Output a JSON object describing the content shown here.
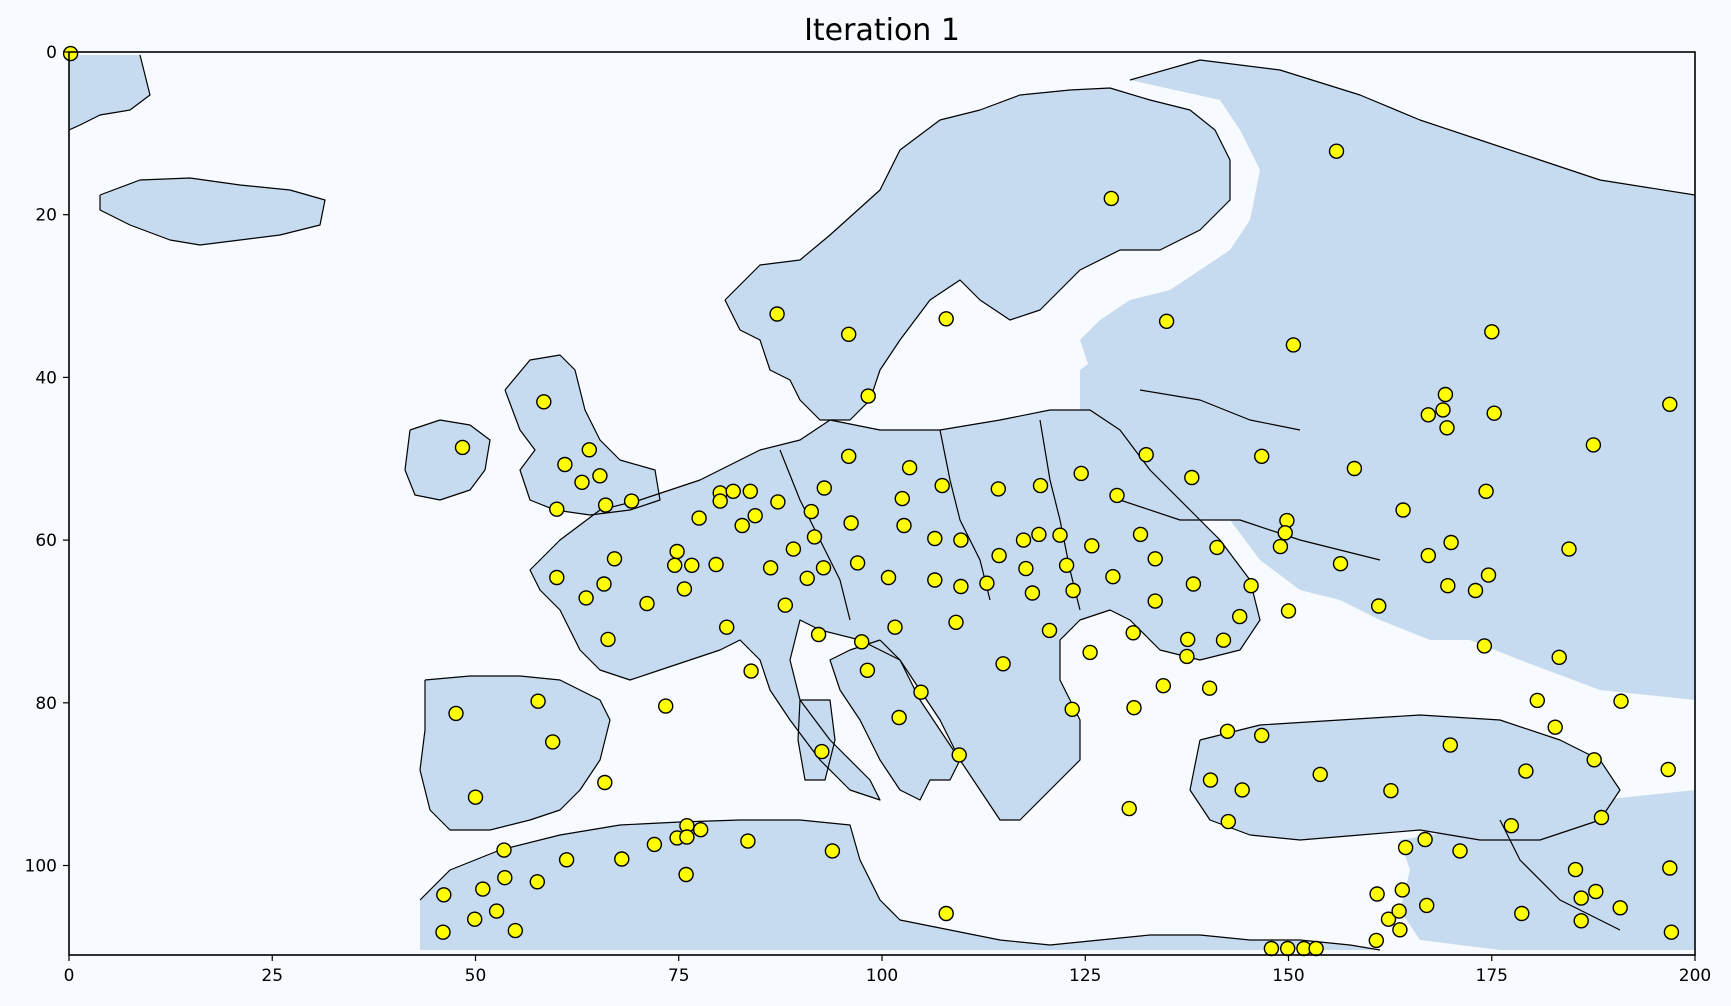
{
  "chart_data": {
    "type": "scatter",
    "title": "Iteration 1",
    "xlabel": "",
    "ylabel": "",
    "xlim": [
      0,
      200
    ],
    "ylim": [
      111,
      0
    ],
    "x_ticks": [
      0,
      25,
      50,
      75,
      100,
      125,
      150,
      175,
      200
    ],
    "y_ticks": [
      0,
      20,
      40,
      60,
      80,
      100
    ],
    "grid": false,
    "background_color": "#f7fbff",
    "land_color": "#c6dbef",
    "marker_color": "#ffff00",
    "points": [
      {
        "x": 0.2,
        "y": 0.2
      },
      {
        "x": 155.9,
        "y": 12.2
      },
      {
        "x": 128.2,
        "y": 18.0
      },
      {
        "x": 87.1,
        "y": 32.2
      },
      {
        "x": 95.9,
        "y": 34.7
      },
      {
        "x": 107.9,
        "y": 32.8
      },
      {
        "x": 135.0,
        "y": 33.1
      },
      {
        "x": 150.6,
        "y": 36.0
      },
      {
        "x": 175.0,
        "y": 34.4
      },
      {
        "x": 58.4,
        "y": 43.0
      },
      {
        "x": 98.3,
        "y": 42.3
      },
      {
        "x": 169.3,
        "y": 42.1
      },
      {
        "x": 167.2,
        "y": 44.6
      },
      {
        "x": 169.0,
        "y": 44.0
      },
      {
        "x": 169.5,
        "y": 46.2
      },
      {
        "x": 175.3,
        "y": 44.4
      },
      {
        "x": 196.9,
        "y": 43.3
      },
      {
        "x": 48.4,
        "y": 48.6
      },
      {
        "x": 64.0,
        "y": 48.9
      },
      {
        "x": 61.0,
        "y": 50.7
      },
      {
        "x": 65.3,
        "y": 52.1
      },
      {
        "x": 63.1,
        "y": 52.9
      },
      {
        "x": 95.9,
        "y": 49.7
      },
      {
        "x": 103.4,
        "y": 51.1
      },
      {
        "x": 132.5,
        "y": 49.5
      },
      {
        "x": 146.7,
        "y": 49.7
      },
      {
        "x": 187.5,
        "y": 48.3
      },
      {
        "x": 69.2,
        "y": 55.2
      },
      {
        "x": 66.0,
        "y": 55.7
      },
      {
        "x": 60.0,
        "y": 56.2
      },
      {
        "x": 80.1,
        "y": 54.2
      },
      {
        "x": 81.7,
        "y": 54.0
      },
      {
        "x": 83.8,
        "y": 54.0
      },
      {
        "x": 80.1,
        "y": 55.2
      },
      {
        "x": 87.2,
        "y": 55.3
      },
      {
        "x": 92.9,
        "y": 53.6
      },
      {
        "x": 107.4,
        "y": 53.3
      },
      {
        "x": 114.3,
        "y": 53.7
      },
      {
        "x": 119.5,
        "y": 53.3
      },
      {
        "x": 124.5,
        "y": 51.8
      },
      {
        "x": 128.9,
        "y": 54.5
      },
      {
        "x": 138.1,
        "y": 52.3
      },
      {
        "x": 158.1,
        "y": 51.2
      },
      {
        "x": 174.3,
        "y": 54.0
      },
      {
        "x": 77.5,
        "y": 57.3
      },
      {
        "x": 82.8,
        "y": 58.2
      },
      {
        "x": 84.4,
        "y": 57.0
      },
      {
        "x": 91.3,
        "y": 56.5
      },
      {
        "x": 96.2,
        "y": 57.9
      },
      {
        "x": 102.5,
        "y": 54.9
      },
      {
        "x": 102.7,
        "y": 58.2
      },
      {
        "x": 149.8,
        "y": 57.6
      },
      {
        "x": 164.1,
        "y": 56.3
      },
      {
        "x": 74.8,
        "y": 61.4
      },
      {
        "x": 89.1,
        "y": 61.1
      },
      {
        "x": 91.7,
        "y": 59.6
      },
      {
        "x": 106.5,
        "y": 59.8
      },
      {
        "x": 109.7,
        "y": 60.0
      },
      {
        "x": 117.4,
        "y": 60.0
      },
      {
        "x": 119.3,
        "y": 59.3
      },
      {
        "x": 121.9,
        "y": 59.4
      },
      {
        "x": 125.8,
        "y": 60.7
      },
      {
        "x": 131.8,
        "y": 59.3
      },
      {
        "x": 141.2,
        "y": 60.9
      },
      {
        "x": 149.6,
        "y": 59.1
      },
      {
        "x": 149.0,
        "y": 60.8
      },
      {
        "x": 170.0,
        "y": 60.3
      },
      {
        "x": 184.5,
        "y": 61.1
      },
      {
        "x": 67.1,
        "y": 62.3
      },
      {
        "x": 74.5,
        "y": 63.1
      },
      {
        "x": 76.6,
        "y": 63.1
      },
      {
        "x": 79.6,
        "y": 63.0
      },
      {
        "x": 86.3,
        "y": 63.4
      },
      {
        "x": 92.8,
        "y": 63.4
      },
      {
        "x": 97.0,
        "y": 62.8
      },
      {
        "x": 114.4,
        "y": 61.9
      },
      {
        "x": 117.7,
        "y": 63.5
      },
      {
        "x": 122.7,
        "y": 63.1
      },
      {
        "x": 133.6,
        "y": 62.3
      },
      {
        "x": 156.4,
        "y": 62.9
      },
      {
        "x": 167.2,
        "y": 61.9
      },
      {
        "x": 60.0,
        "y": 64.6
      },
      {
        "x": 65.8,
        "y": 65.4
      },
      {
        "x": 90.8,
        "y": 64.7
      },
      {
        "x": 100.8,
        "y": 64.6
      },
      {
        "x": 106.5,
        "y": 64.9
      },
      {
        "x": 109.7,
        "y": 65.7
      },
      {
        "x": 112.9,
        "y": 65.3
      },
      {
        "x": 128.4,
        "y": 64.5
      },
      {
        "x": 138.3,
        "y": 65.4
      },
      {
        "x": 145.4,
        "y": 65.6
      },
      {
        "x": 169.6,
        "y": 65.6
      },
      {
        "x": 174.6,
        "y": 64.3
      },
      {
        "x": 63.6,
        "y": 67.1
      },
      {
        "x": 75.7,
        "y": 66.0
      },
      {
        "x": 88.1,
        "y": 68.0
      },
      {
        "x": 118.5,
        "y": 66.5
      },
      {
        "x": 123.5,
        "y": 66.2
      },
      {
        "x": 133.6,
        "y": 67.5
      },
      {
        "x": 150.0,
        "y": 68.7
      },
      {
        "x": 161.1,
        "y": 68.1
      },
      {
        "x": 173.0,
        "y": 66.2
      },
      {
        "x": 71.1,
        "y": 67.8
      },
      {
        "x": 109.1,
        "y": 70.1
      },
      {
        "x": 144.0,
        "y": 69.4
      },
      {
        "x": 66.3,
        "y": 72.2
      },
      {
        "x": 80.9,
        "y": 70.7
      },
      {
        "x": 92.2,
        "y": 71.6
      },
      {
        "x": 97.5,
        "y": 72.5
      },
      {
        "x": 101.6,
        "y": 70.7
      },
      {
        "x": 120.6,
        "y": 71.1
      },
      {
        "x": 130.9,
        "y": 71.4
      },
      {
        "x": 137.6,
        "y": 72.2
      },
      {
        "x": 142.0,
        "y": 72.3
      },
      {
        "x": 174.1,
        "y": 73.0
      },
      {
        "x": 125.6,
        "y": 73.8
      },
      {
        "x": 137.5,
        "y": 74.3
      },
      {
        "x": 183.3,
        "y": 74.4
      },
      {
        "x": 83.9,
        "y": 76.1
      },
      {
        "x": 98.2,
        "y": 76.0
      },
      {
        "x": 114.9,
        "y": 75.2
      },
      {
        "x": 104.8,
        "y": 78.7
      },
      {
        "x": 134.6,
        "y": 77.9
      },
      {
        "x": 140.3,
        "y": 78.2
      },
      {
        "x": 57.7,
        "y": 79.8
      },
      {
        "x": 73.4,
        "y": 80.4
      },
      {
        "x": 123.4,
        "y": 80.8
      },
      {
        "x": 131.0,
        "y": 80.6
      },
      {
        "x": 180.6,
        "y": 79.7
      },
      {
        "x": 190.9,
        "y": 79.8
      },
      {
        "x": 47.6,
        "y": 81.3
      },
      {
        "x": 102.1,
        "y": 81.8
      },
      {
        "x": 59.5,
        "y": 84.8
      },
      {
        "x": 142.5,
        "y": 83.5
      },
      {
        "x": 146.7,
        "y": 84.0
      },
      {
        "x": 169.9,
        "y": 85.2
      },
      {
        "x": 182.8,
        "y": 83.0
      },
      {
        "x": 92.6,
        "y": 86.0
      },
      {
        "x": 109.5,
        "y": 86.4
      },
      {
        "x": 65.9,
        "y": 89.8
      },
      {
        "x": 140.4,
        "y": 89.5
      },
      {
        "x": 144.3,
        "y": 90.7
      },
      {
        "x": 153.9,
        "y": 88.8
      },
      {
        "x": 162.6,
        "y": 90.8
      },
      {
        "x": 179.2,
        "y": 88.4
      },
      {
        "x": 187.6,
        "y": 87.0
      },
      {
        "x": 196.7,
        "y": 88.2
      },
      {
        "x": 50.0,
        "y": 91.6
      },
      {
        "x": 130.4,
        "y": 93.0
      },
      {
        "x": 142.6,
        "y": 94.6
      },
      {
        "x": 76.0,
        "y": 95.1
      },
      {
        "x": 77.7,
        "y": 95.6
      },
      {
        "x": 74.8,
        "y": 96.6
      },
      {
        "x": 76.0,
        "y": 96.5
      },
      {
        "x": 166.8,
        "y": 96.8
      },
      {
        "x": 177.4,
        "y": 95.1
      },
      {
        "x": 188.5,
        "y": 94.1
      },
      {
        "x": 53.5,
        "y": 98.1
      },
      {
        "x": 72.0,
        "y": 97.4
      },
      {
        "x": 83.5,
        "y": 97.0
      },
      {
        "x": 93.9,
        "y": 98.2
      },
      {
        "x": 164.4,
        "y": 97.8
      },
      {
        "x": 171.1,
        "y": 98.2
      },
      {
        "x": 61.2,
        "y": 99.3
      },
      {
        "x": 68.0,
        "y": 99.2
      },
      {
        "x": 75.9,
        "y": 101.1
      },
      {
        "x": 46.1,
        "y": 103.6
      },
      {
        "x": 50.9,
        "y": 102.9
      },
      {
        "x": 53.6,
        "y": 101.5
      },
      {
        "x": 57.6,
        "y": 102.0
      },
      {
        "x": 160.9,
        "y": 103.5
      },
      {
        "x": 164.0,
        "y": 103.0
      },
      {
        "x": 185.3,
        "y": 100.5
      },
      {
        "x": 196.9,
        "y": 100.3
      },
      {
        "x": 49.9,
        "y": 106.6
      },
      {
        "x": 52.6,
        "y": 105.6
      },
      {
        "x": 107.9,
        "y": 105.9
      },
      {
        "x": 162.3,
        "y": 106.6
      },
      {
        "x": 163.6,
        "y": 105.6
      },
      {
        "x": 167.0,
        "y": 104.9
      },
      {
        "x": 178.7,
        "y": 105.9
      },
      {
        "x": 186.0,
        "y": 104.0
      },
      {
        "x": 187.8,
        "y": 103.2
      },
      {
        "x": 190.8,
        "y": 105.2
      },
      {
        "x": 46.0,
        "y": 108.2
      },
      {
        "x": 54.9,
        "y": 108.0
      },
      {
        "x": 163.7,
        "y": 107.9
      },
      {
        "x": 186.0,
        "y": 106.8
      },
      {
        "x": 197.1,
        "y": 108.2
      },
      {
        "x": 160.8,
        "y": 109.2
      },
      {
        "x": 147.9,
        "y": 110.2
      },
      {
        "x": 149.9,
        "y": 110.2
      },
      {
        "x": 151.9,
        "y": 110.2
      },
      {
        "x": 153.4,
        "y": 110.2
      }
    ]
  }
}
